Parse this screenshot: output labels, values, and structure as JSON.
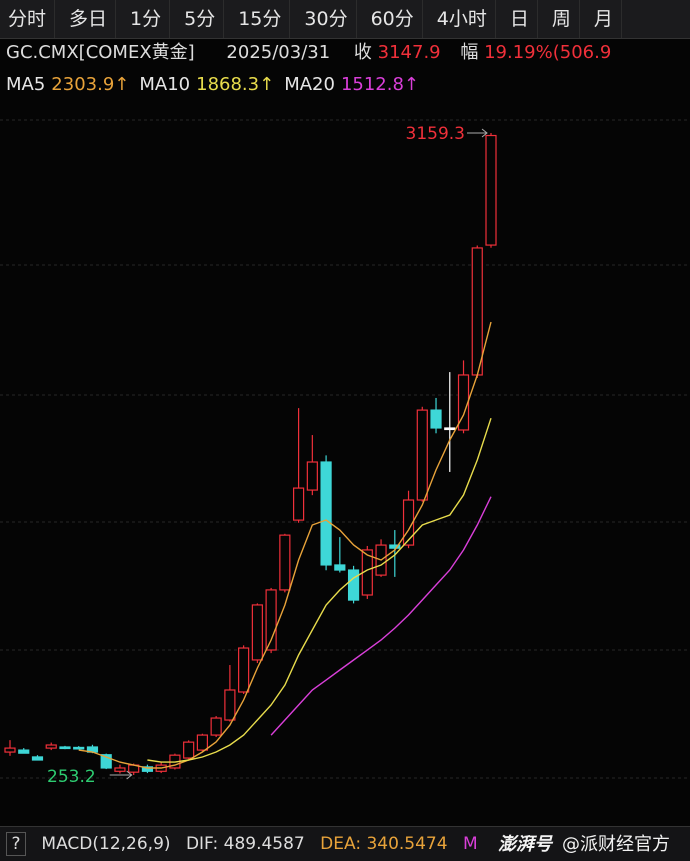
{
  "tabs": [
    "分时",
    "多日",
    "1分",
    "5分",
    "15分",
    "30分",
    "60分",
    "4小时",
    "日",
    "周",
    "月"
  ],
  "info": {
    "symbol": "GC.CMX[COMEX黄金]",
    "date": "2025/03/31",
    "close_label": "收",
    "close": "3147.9",
    "change_label": "幅",
    "change": "19.19%(506.9"
  },
  "chart_data": {
    "type": "candlestick",
    "up_color": "#f0303a",
    "down_color": "#3ed7d7",
    "flat_color": "#ffffff",
    "candles": [
      {
        "open": 357,
        "high": 411,
        "low": 340,
        "close": 375
      },
      {
        "open": 366,
        "high": 375,
        "low": 352,
        "close": 352
      },
      {
        "open": 335,
        "high": 343,
        "low": 320,
        "close": 321
      },
      {
        "open": 375,
        "high": 400,
        "low": 366,
        "close": 389
      },
      {
        "open": 380,
        "high": 385,
        "low": 370,
        "close": 375
      },
      {
        "open": 378,
        "high": 384,
        "low": 372,
        "close": 374
      },
      {
        "open": 380,
        "high": 390,
        "low": 352,
        "close": 357
      },
      {
        "open": 345,
        "high": 350,
        "low": 280,
        "close": 285
      },
      {
        "open": 270,
        "high": 300,
        "low": 260,
        "close": 285
      },
      {
        "open": 266,
        "high": 305,
        "low": 253.2,
        "close": 298
      },
      {
        "open": 290,
        "high": 300,
        "low": 262,
        "close": 270
      },
      {
        "open": 270,
        "high": 310,
        "low": 262,
        "close": 298
      },
      {
        "open": 285,
        "high": 350,
        "low": 278,
        "close": 343
      },
      {
        "open": 330,
        "high": 410,
        "low": 325,
        "close": 402
      },
      {
        "open": 366,
        "high": 440,
        "low": 360,
        "close": 434
      },
      {
        "open": 434,
        "high": 520,
        "low": 425,
        "close": 511
      },
      {
        "open": 502,
        "high": 751,
        "low": 495,
        "close": 638
      },
      {
        "open": 629,
        "high": 840,
        "low": 620,
        "close": 828
      },
      {
        "open": 774,
        "high": 1030,
        "low": 760,
        "close": 1023
      },
      {
        "open": 819,
        "high": 1100,
        "low": 805,
        "close": 1091
      },
      {
        "open": 1091,
        "high": 1345,
        "low": 1080,
        "close": 1339
      },
      {
        "open": 1407,
        "high": 1914,
        "low": 1395,
        "close": 1552
      },
      {
        "open": 1543,
        "high": 1792,
        "low": 1520,
        "close": 1670
      },
      {
        "open": 1670,
        "high": 1700,
        "low": 1180,
        "close": 1204
      },
      {
        "open": 1204,
        "high": 1330,
        "low": 1170,
        "close": 1181
      },
      {
        "open": 1181,
        "high": 1200,
        "low": 1030,
        "close": 1045
      },
      {
        "open": 1068,
        "high": 1290,
        "low": 1050,
        "close": 1272
      },
      {
        "open": 1158,
        "high": 1320,
        "low": 1150,
        "close": 1294
      },
      {
        "open": 1294,
        "high": 1362,
        "low": 1150,
        "close": 1280
      },
      {
        "open": 1294,
        "high": 1540,
        "low": 1280,
        "close": 1498
      },
      {
        "open": 1498,
        "high": 1920,
        "low": 1490,
        "close": 1905
      },
      {
        "open": 1905,
        "high": 1960,
        "low": 1800,
        "close": 1824
      },
      {
        "open": 1824,
        "high": 2077,
        "low": 1625,
        "close": 1824
      },
      {
        "open": 1815,
        "high": 2130,
        "low": 1800,
        "close": 2064
      },
      {
        "open": 2064,
        "high": 2650,
        "low": 2050,
        "close": 2639
      },
      {
        "open": 2652,
        "high": 3159.3,
        "low": 2640,
        "close": 3147.9
      }
    ],
    "series": [
      {
        "name": "MA5",
        "color": "#e8a33a",
        "last_label": "2303.9↑",
        "values": [
          null,
          null,
          null,
          null,
          null,
          366.1,
          357.1,
          334.5,
          311.8,
          298.2,
          284.7,
          284.7,
          298.2,
          320.9,
          357.1,
          402.4,
          479.3,
          592.5,
          737.4,
          864.1,
          1022.6,
          1226.3,
          1384.8,
          1407.3,
          1362.1,
          1294.2,
          1248.9,
          1226.3,
          1271.5,
          1362.1,
          1475.3,
          1633.7,
          1769.6,
          1882.7,
          2063.8,
          2303.9
        ]
      },
      {
        "name": "MA10",
        "color": "#e8dc4c",
        "last_label": "1868.3↑",
        "values": [
          null,
          null,
          null,
          null,
          null,
          null,
          null,
          null,
          null,
          null,
          320.9,
          311.8,
          311.8,
          320.9,
          334.5,
          357.1,
          388.8,
          434.0,
          502.0,
          569.9,
          660.4,
          796.2,
          909.4,
          1022.6,
          1090.5,
          1144.8,
          1181.0,
          1203.6,
          1248.9,
          1316.8,
          1384.8,
          1407.3,
          1430.0,
          1520.5,
          1679.0,
          1868.3
        ]
      },
      {
        "name": "MA20",
        "color": "#d93fd9",
        "last_label": "1512.8↑",
        "values": [
          null,
          null,
          null,
          null,
          null,
          null,
          null,
          null,
          null,
          null,
          null,
          null,
          null,
          null,
          null,
          null,
          null,
          null,
          null,
          434.0,
          502.0,
          569.9,
          637.8,
          683.0,
          728.3,
          773.6,
          818.8,
          864.1,
          918.2,
          977.3,
          1045.2,
          1113.1,
          1181.0,
          1271.5,
          1384.8,
          1512.8
        ]
      }
    ],
    "high_marker": 3159.3,
    "low_marker": 253.2
  },
  "footer": {
    "help": "?",
    "indicator": "MACD(12,26,9)",
    "dif": "DIF: 489.4587",
    "dea": "DEA: 340.5474",
    "more": "M",
    "logo": "澎湃号",
    "watermark": "@派财经官方"
  }
}
